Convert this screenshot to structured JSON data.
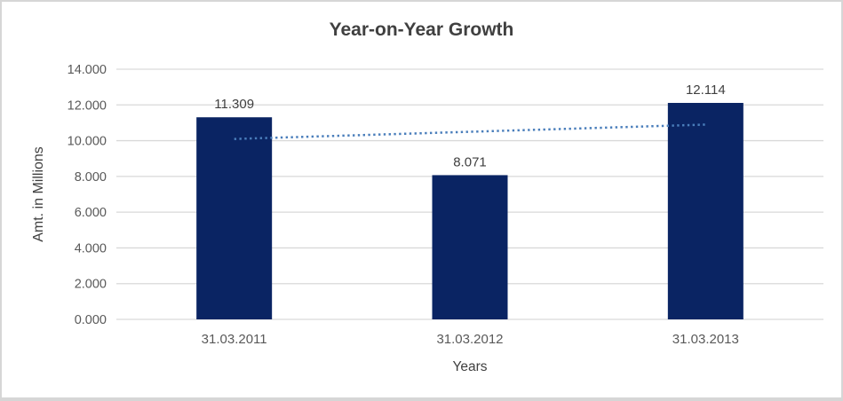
{
  "chart_data": {
    "type": "bar",
    "title": "Year-on-Year Growth",
    "xlabel": "Years",
    "ylabel": "Amt. in Millions",
    "categories": [
      "31.03.2011",
      "31.03.2012",
      "31.03.2013"
    ],
    "values": [
      11.309,
      8.071,
      12.114
    ],
    "data_labels": [
      "11.309",
      "8.071",
      "12.114"
    ],
    "ylim": [
      0,
      14
    ],
    "yticks": [
      {
        "value": 0,
        "label": "0.000"
      },
      {
        "value": 2,
        "label": "2.000"
      },
      {
        "value": 4,
        "label": "4.000"
      },
      {
        "value": 6,
        "label": "6.000"
      },
      {
        "value": 8,
        "label": "8.000"
      },
      {
        "value": 10,
        "label": "10.000"
      },
      {
        "value": 12,
        "label": "12.000"
      },
      {
        "value": 14,
        "label": "14.000"
      }
    ],
    "grid": true,
    "legend": "none",
    "trendline": {
      "type": "linear",
      "style": "dotted",
      "start_value": 10.096,
      "end_value": 10.9
    },
    "colors": {
      "bar": "#0a2463",
      "trendline": "#4a7ebb",
      "gridline": "#d9d9d9",
      "title_text": "#404040",
      "axis_text": "#595959",
      "label_text": "#404040",
      "frame_border": "#d6d6d6",
      "background": "#ffffff"
    }
  }
}
